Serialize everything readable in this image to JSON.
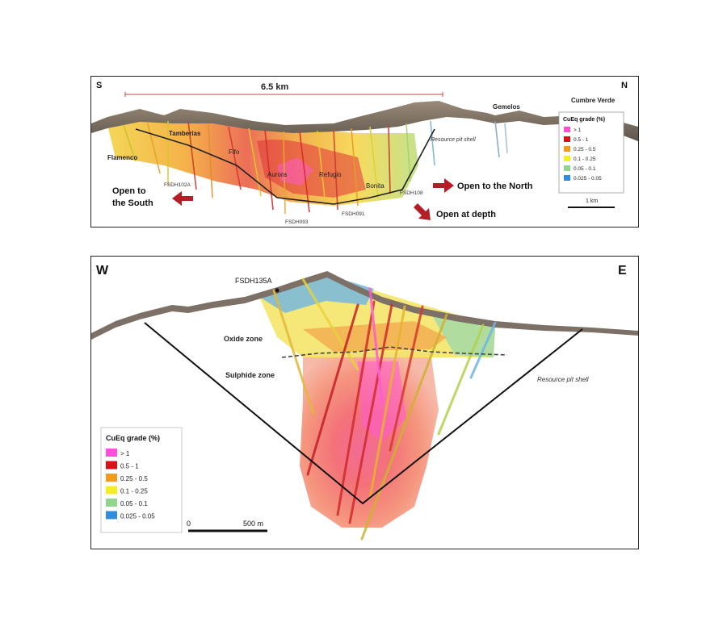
{
  "top_section": {
    "compass_left": "S",
    "compass_right": "N",
    "scale_distance": "6.5 km",
    "localities": [
      "Flamenco",
      "Tamberías",
      "Gemelos",
      "Cumbre Verde"
    ],
    "deposits": [
      "Fifo",
      "Aurora",
      "Refugio",
      "Bonita"
    ],
    "drillholes": [
      "FSDH102A",
      "FSDH093",
      "FSDH091",
      "FSDH108"
    ],
    "pit_label": "Resource pit shell",
    "arrows": {
      "south": [
        "Open to",
        "the South"
      ],
      "north": "Open to the North",
      "depth": "Open at depth"
    },
    "legend": {
      "title": "CuEq grade (%)",
      "items": [
        "> 1",
        "0.5 - 1",
        "0.25 - 0.5",
        "0.1 - 0.25",
        "0.05 - 0.1",
        "0.025 - 0.05"
      ],
      "colors": [
        "#ff4fd8",
        "#d9121a",
        "#f39a1c",
        "#f5ee22",
        "#8fd68c",
        "#2f8de0"
      ]
    },
    "scale_bar": "1 km"
  },
  "bottom_section": {
    "compass_left": "W",
    "compass_right": "E",
    "drillhole": "FSDH135A",
    "zones": [
      "Oxide zone",
      "Sulphide zone"
    ],
    "pit_label": "Resource pit shell",
    "legend": {
      "title": "CuEq grade (%)",
      "items": [
        "> 1",
        "0.5 - 1",
        "0.25 - 0.5",
        "0.1 - 0.25",
        "0.05 - 0.1",
        "0.025 - 0.05"
      ],
      "colors": [
        "#ff4fd8",
        "#d9121a",
        "#f39a1c",
        "#f5ee22",
        "#8fd68c",
        "#2f8de0"
      ]
    },
    "scale_bar": {
      "start": "0",
      "end": "500 m"
    }
  }
}
